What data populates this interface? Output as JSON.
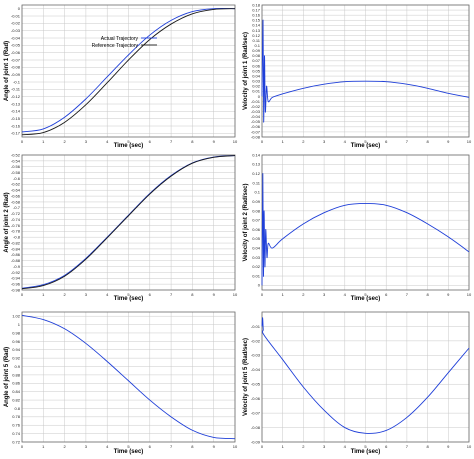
{
  "colors": {
    "actual": "#1f3fd8",
    "reference": "#1a1a1a",
    "grid": "#c8c8c8",
    "frame": "#6a6a6a",
    "background": "#ffffff"
  },
  "chart_data": [
    {
      "id": "angle-joint-1",
      "type": "line",
      "xlabel": "Time (sec)",
      "ylabel": "Angle of joint 1 (Rad)",
      "xlim": [
        0,
        10
      ],
      "ylim": [
        -0.175,
        0.005
      ],
      "xticks": [
        "0",
        "1",
        "2",
        "3",
        "4",
        "5",
        "6",
        "7",
        "8",
        "9",
        "10"
      ],
      "yticks": [
        "0",
        "-0.01",
        "-0.02",
        "-0.03",
        "-0.04",
        "-0.05",
        "-0.06",
        "-0.07",
        "-0.08",
        "-0.09",
        "-0.1",
        "-0.11",
        "-0.12",
        "-0.13",
        "-0.14",
        "-0.15",
        "-0.16",
        "-0.17"
      ],
      "grid": true,
      "legend": {
        "placement": "upper-middle",
        "entries": [
          "Actual Trajectory",
          "Reference Trajectory"
        ]
      },
      "series": [
        {
          "name": "Actual Trajectory",
          "color": "#1f3fd8",
          "x": [
            0,
            1,
            2,
            3,
            4,
            5,
            6,
            7,
            8,
            9,
            10
          ],
          "y": [
            -0.168,
            -0.164,
            -0.148,
            -0.123,
            -0.093,
            -0.063,
            -0.036,
            -0.016,
            -0.004,
            0.0,
            0.0
          ]
        },
        {
          "name": "Reference Trajectory",
          "color": "#1a1a1a",
          "x": [
            0,
            1,
            2,
            3,
            4,
            5,
            6,
            7,
            8,
            9,
            10
          ],
          "y": [
            -0.172,
            -0.169,
            -0.155,
            -0.131,
            -0.101,
            -0.07,
            -0.042,
            -0.021,
            -0.007,
            -0.001,
            0.0
          ]
        }
      ]
    },
    {
      "id": "velocity-joint-1",
      "type": "line",
      "xlabel": "Time (sec)",
      "ylabel": "Velocity of joint 1 (Rad/sec)",
      "xlim": [
        0,
        10
      ],
      "ylim": [
        -0.08,
        0.18
      ],
      "xticks": [
        "0",
        "1",
        "2",
        "3",
        "4",
        "5",
        "6",
        "7",
        "8",
        "9",
        "10"
      ],
      "yticks": [
        "0.18",
        "0.17",
        "0.16",
        "0.15",
        "0.14",
        "0.13",
        "0.12",
        "0.11",
        "0.1",
        "0.09",
        "0.08",
        "0.07",
        "0.06",
        "0.05",
        "0.04",
        "0.03",
        "0.02",
        "0.01",
        "0",
        "-0.01",
        "-0.02",
        "-0.03",
        "-0.04",
        "-0.05",
        "-0.06",
        "-0.07",
        "-0.08"
      ],
      "grid": true,
      "series": [
        {
          "color": "#1f3fd8",
          "x": [
            0,
            0.05,
            0.08,
            0.12,
            0.16,
            0.22,
            0.3,
            0.5,
            1,
            2,
            3,
            4,
            5,
            6,
            7,
            8,
            9,
            10
          ],
          "y": [
            0,
            0.15,
            -0.05,
            0.08,
            -0.03,
            0.02,
            -0.01,
            -0.002,
            0.005,
            0.016,
            0.024,
            0.029,
            0.03,
            0.029,
            0.024,
            0.016,
            0.006,
            -0.002
          ]
        }
      ]
    },
    {
      "id": "angle-joint-2",
      "type": "line",
      "xlabel": "Time (sec)",
      "ylabel": "Angle of joint 2 (Rad)",
      "xlim": [
        0,
        10
      ],
      "ylim": [
        -0.98,
        -0.52
      ],
      "xticks": [
        "0",
        "1",
        "2",
        "3",
        "4",
        "5",
        "6",
        "7",
        "8",
        "9",
        "10"
      ],
      "yticks": [
        "-0.52",
        "-0.54",
        "-0.56",
        "-0.58",
        "-0.6",
        "-0.62",
        "-0.64",
        "-0.66",
        "-0.68",
        "-0.7",
        "-0.72",
        "-0.74",
        "-0.76",
        "-0.78",
        "-0.8",
        "-0.82",
        "-0.84",
        "-0.86",
        "-0.88",
        "-0.9",
        "-0.92",
        "-0.94",
        "-0.96",
        "-0.98"
      ],
      "grid": true,
      "series": [
        {
          "color": "#1f3fd8",
          "x": [
            0,
            1,
            2,
            3,
            4,
            5,
            6,
            7,
            8,
            9,
            10
          ],
          "y": [
            -0.974,
            -0.962,
            -0.93,
            -0.872,
            -0.8,
            -0.725,
            -0.651,
            -0.59,
            -0.547,
            -0.527,
            -0.522
          ]
        },
        {
          "color": "#1a1a1a",
          "x": [
            0,
            1,
            2,
            3,
            4,
            5,
            6,
            7,
            8,
            9,
            10
          ],
          "y": [
            -0.976,
            -0.965,
            -0.933,
            -0.875,
            -0.802,
            -0.727,
            -0.653,
            -0.592,
            -0.548,
            -0.528,
            -0.522
          ]
        }
      ]
    },
    {
      "id": "velocity-joint-2",
      "type": "line",
      "xlabel": "Time (sec)",
      "ylabel": "Velocity of joint 2 (Rad/sec)",
      "xlim": [
        0,
        10
      ],
      "ylim": [
        -0.005,
        0.14
      ],
      "xticks": [
        "0",
        "1",
        "2",
        "3",
        "4",
        "5",
        "6",
        "7",
        "8",
        "9",
        "10"
      ],
      "yticks": [
        "0.14",
        "0.13",
        "0.12",
        "0.11",
        "0.1",
        "0.09",
        "0.08",
        "0.07",
        "0.06",
        "0.05",
        "0.04",
        "0.03",
        "0.02",
        "0.01",
        "0"
      ],
      "grid": true,
      "series": [
        {
          "color": "#1f3fd8",
          "x": [
            0,
            0.04,
            0.07,
            0.1,
            0.14,
            0.18,
            0.24,
            0.3,
            0.5,
            1,
            2,
            3,
            4,
            5,
            6,
            7,
            8,
            9,
            10
          ],
          "y": [
            0,
            0.12,
            0.01,
            0.08,
            0.02,
            0.06,
            0.03,
            0.045,
            0.04,
            0.05,
            0.066,
            0.078,
            0.086,
            0.088,
            0.086,
            0.078,
            0.066,
            0.052,
            0.036
          ]
        }
      ]
    },
    {
      "id": "angle-joint-5",
      "type": "line",
      "xlabel": "Time (sec)",
      "ylabel": "Angle of joint 5 (Rad)",
      "xlim": [
        0,
        10
      ],
      "ylim": [
        0.72,
        1.03
      ],
      "xticks": [
        "0",
        "1",
        "2",
        "3",
        "4",
        "5",
        "6",
        "7",
        "8",
        "9",
        "10"
      ],
      "yticks": [
        "1.02",
        "1",
        "0.98",
        "0.96",
        "0.94",
        "0.92",
        "0.9",
        "0.88",
        "0.86",
        "0.84",
        "0.82",
        "0.8",
        "0.78",
        "0.76",
        "0.74",
        "0.72"
      ],
      "grid": true,
      "series": [
        {
          "color": "#1f3fd8",
          "x": [
            0,
            1,
            2,
            3,
            4,
            5,
            6,
            7,
            8,
            9,
            10
          ],
          "y": [
            1.022,
            1.012,
            0.99,
            0.955,
            0.912,
            0.866,
            0.82,
            0.78,
            0.748,
            0.731,
            0.728
          ]
        }
      ]
    },
    {
      "id": "velocity-joint-5",
      "type": "line",
      "xlabel": "Time (sec)",
      "ylabel": "Velocity of joint 5 (Rad/sec)",
      "xlim": [
        0,
        10
      ],
      "ylim": [
        -0.09,
        0.0
      ],
      "xticks": [
        "0",
        "1",
        "2",
        "3",
        "4",
        "5",
        "6",
        "7",
        "8",
        "9",
        "10"
      ],
      "yticks": [
        "-0.01",
        "-0.02",
        "-0.03",
        "-0.04",
        "-0.05",
        "-0.06",
        "-0.07",
        "-0.08",
        "-0.09"
      ],
      "grid": true,
      "series": [
        {
          "color": "#1f3fd8",
          "x": [
            0,
            0.03,
            0.06,
            0.1,
            1,
            2,
            3,
            4,
            5,
            6,
            7,
            8,
            9,
            10
          ],
          "y": [
            -0.01,
            -0.004,
            -0.012,
            -0.016,
            -0.033,
            -0.052,
            -0.068,
            -0.08,
            -0.084,
            -0.082,
            -0.073,
            -0.059,
            -0.042,
            -0.025
          ]
        }
      ]
    }
  ]
}
